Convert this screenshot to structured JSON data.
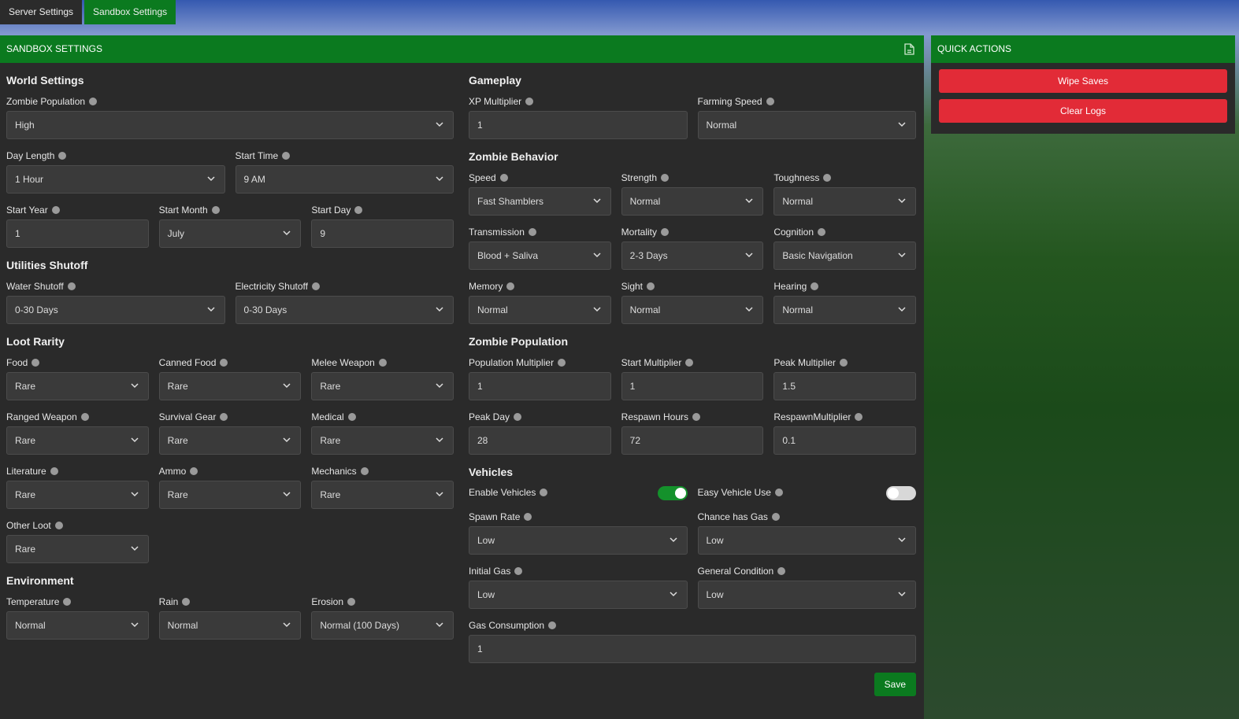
{
  "tabs": [
    "Server Settings",
    "Sandbox Settings"
  ],
  "panel": {
    "title": "SANDBOX SETTINGS",
    "save": "Save",
    "columns": [
      [
        {
          "title": "World Settings",
          "rows": [
            [
              {
                "label": "Zombie Population",
                "kind": "select",
                "value": "High"
              }
            ],
            [
              {
                "label": "Day Length",
                "kind": "select",
                "value": "1 Hour"
              },
              {
                "label": "Start Time",
                "kind": "select",
                "value": "9 AM"
              }
            ],
            [
              {
                "label": "Start Year",
                "kind": "input",
                "value": "1"
              },
              {
                "label": "Start Month",
                "kind": "select",
                "value": "July"
              },
              {
                "label": "Start Day",
                "kind": "input",
                "value": "9"
              }
            ]
          ]
        },
        {
          "title": "Utilities Shutoff",
          "rows": [
            [
              {
                "label": "Water Shutoff",
                "kind": "select",
                "value": "0-30 Days"
              },
              {
                "label": "Electricity Shutoff",
                "kind": "select",
                "value": "0-30 Days"
              }
            ]
          ]
        },
        {
          "title": "Loot Rarity",
          "rows": [
            [
              {
                "label": "Food",
                "kind": "select",
                "value": "Rare"
              },
              {
                "label": "Canned Food",
                "kind": "select",
                "value": "Rare"
              },
              {
                "label": "Melee Weapon",
                "kind": "select",
                "value": "Rare"
              }
            ],
            [
              {
                "label": "Ranged Weapon",
                "kind": "select",
                "value": "Rare"
              },
              {
                "label": "Survival Gear",
                "kind": "select",
                "value": "Rare"
              },
              {
                "label": "Medical",
                "kind": "select",
                "value": "Rare"
              }
            ],
            [
              {
                "label": "Literature",
                "kind": "select",
                "value": "Rare"
              },
              {
                "label": "Ammo",
                "kind": "select",
                "value": "Rare"
              },
              {
                "label": "Mechanics",
                "kind": "select",
                "value": "Rare"
              }
            ],
            [
              {
                "label": "Other Loot",
                "kind": "select",
                "value": "Rare"
              }
            ]
          ]
        },
        {
          "title": "Environment",
          "rows": [
            [
              {
                "label": "Temperature",
                "kind": "select",
                "value": "Normal"
              },
              {
                "label": "Rain",
                "kind": "select",
                "value": "Normal"
              },
              {
                "label": "Erosion",
                "kind": "select",
                "value": "Normal (100 Days)"
              }
            ]
          ]
        }
      ],
      [
        {
          "title": "Gameplay",
          "rows": [
            [
              {
                "label": "XP Multiplier",
                "kind": "input",
                "value": "1"
              },
              {
                "label": "Farming Speed",
                "kind": "select",
                "value": "Normal"
              }
            ]
          ]
        },
        {
          "title": "Zombie Behavior",
          "rows": [
            [
              {
                "label": "Speed",
                "kind": "select",
                "value": "Fast Shamblers"
              },
              {
                "label": "Strength",
                "kind": "select",
                "value": "Normal"
              },
              {
                "label": "Toughness",
                "kind": "select",
                "value": "Normal"
              }
            ],
            [
              {
                "label": "Transmission",
                "kind": "select",
                "value": "Blood + Saliva"
              },
              {
                "label": "Mortality",
                "kind": "select",
                "value": "2-3 Days"
              },
              {
                "label": "Cognition",
                "kind": "select",
                "value": "Basic Navigation"
              }
            ],
            [
              {
                "label": "Memory",
                "kind": "select",
                "value": "Normal"
              },
              {
                "label": "Sight",
                "kind": "select",
                "value": "Normal"
              },
              {
                "label": "Hearing",
                "kind": "select",
                "value": "Normal"
              }
            ]
          ]
        },
        {
          "title": "Zombie Population",
          "rows": [
            [
              {
                "label": "Population Multiplier",
                "kind": "input",
                "value": "1"
              },
              {
                "label": "Start Multiplier",
                "kind": "input",
                "value": "1"
              },
              {
                "label": "Peak Multiplier",
                "kind": "input",
                "value": "1.5"
              }
            ],
            [
              {
                "label": "Peak Day",
                "kind": "input",
                "value": "28"
              },
              {
                "label": "Respawn Hours",
                "kind": "input",
                "value": "72"
              },
              {
                "label": "RespawnMultiplier",
                "kind": "input",
                "value": "0.1"
              }
            ]
          ]
        },
        {
          "title": "Vehicles",
          "rows": [
            [
              {
                "label": "Enable Vehicles",
                "kind": "toggle",
                "on": true
              },
              {
                "label": "Easy Vehicle Use",
                "kind": "toggle",
                "on": false
              }
            ],
            [
              {
                "label": "Spawn Rate",
                "kind": "select",
                "value": "Low"
              },
              {
                "label": "Chance has Gas",
                "kind": "select",
                "value": "Low"
              }
            ],
            [
              {
                "label": "Initial Gas",
                "kind": "select",
                "value": "Low"
              },
              {
                "label": "General Condition",
                "kind": "select",
                "value": "Low"
              }
            ],
            [
              {
                "label": "Gas Consumption",
                "kind": "input",
                "value": "1"
              }
            ]
          ]
        }
      ]
    ]
  },
  "quick_actions": {
    "title": "QUICK ACTIONS",
    "buttons": [
      "Wipe Saves",
      "Clear Logs"
    ]
  }
}
